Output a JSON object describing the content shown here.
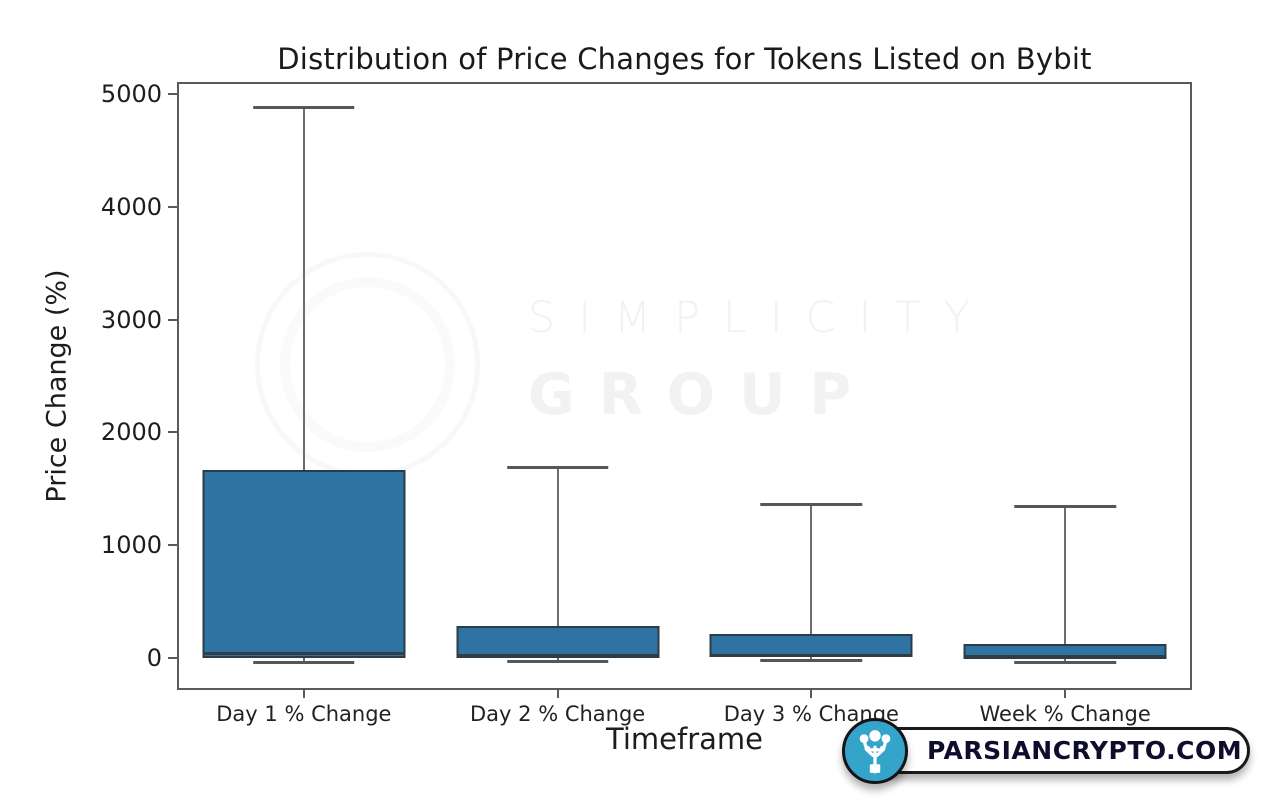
{
  "watermark": {
    "line1": "SIMPLICITY",
    "line2": "GROUP"
  },
  "brand": {
    "text": "PARSIANCRYPTO.COM",
    "icon": "plant-icon",
    "circle_color": "#35a4cb",
    "text_color": "#0e0e2c"
  },
  "chart_data": {
    "type": "boxplot",
    "title": "Distribution of Price Changes for Tokens Listed on Bybit",
    "xlabel": "Timeframe",
    "ylabel": "Price Change (%)",
    "categories": [
      "Day 1 % Change",
      "Day 2 % Change",
      "Day 3 % Change",
      "Week % Change"
    ],
    "yticks": [
      0,
      1000,
      2000,
      3000,
      4000,
      5000
    ],
    "ylim": [
      -285,
      5110
    ],
    "grid": false,
    "legend": "none",
    "boxes": [
      {
        "category": "Day 1 % Change",
        "whisker_low": -40,
        "q1": -5,
        "median": 40,
        "q3": 1670,
        "whisker_high": 4880
      },
      {
        "category": "Day 2 % Change",
        "whisker_low": -35,
        "q1": 0,
        "median": 25,
        "q3": 280,
        "whisker_high": 1690
      },
      {
        "category": "Day 3 % Change",
        "whisker_low": -20,
        "q1": 5,
        "median": 20,
        "q3": 215,
        "whisker_high": 1365
      },
      {
        "category": "Week % Change",
        "whisker_low": -40,
        "q1": -10,
        "median": 15,
        "q3": 125,
        "whisker_high": 1340
      }
    ],
    "colors": {
      "box_fill": "#2e73a2",
      "box_edge": "#2a3b4a",
      "median": "#343b41",
      "whisker": "#6d6d6d",
      "cap": "#565656",
      "spine": "#5a5a5a"
    }
  }
}
